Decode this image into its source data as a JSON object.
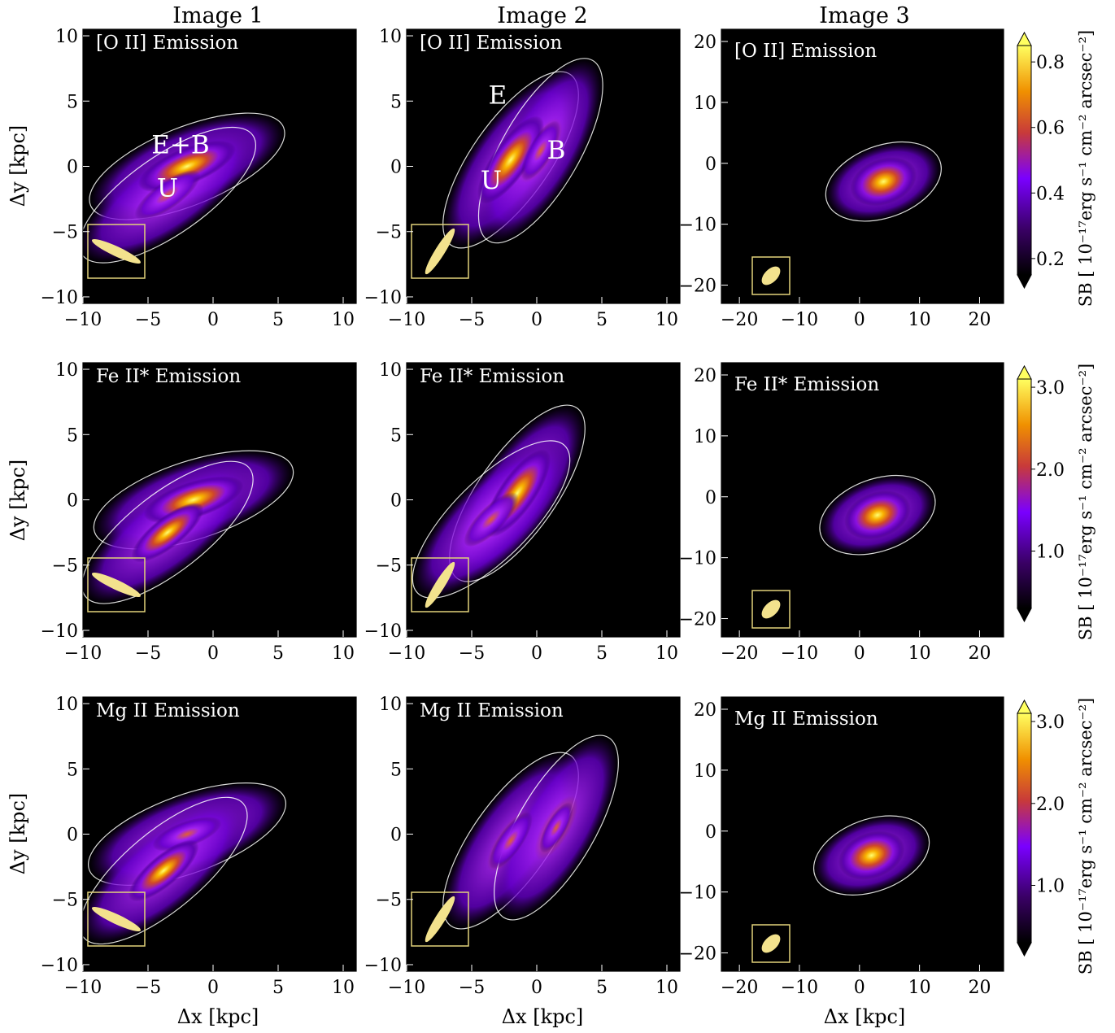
{
  "figure": {
    "column_titles": [
      "Image 1",
      "Image 2",
      "Image 3"
    ],
    "xlabel": "Δx [kpc]",
    "ylabel": "Δy [kpc]",
    "colorbar_label": "SB [ 10⁻¹⁷erg s⁻¹ cm⁻² arcsec⁻²]"
  },
  "colors": {
    "background": "#000000",
    "contour": "#ffffff",
    "beam_fill": "#f3e28d",
    "beam_box": "#e2d27a",
    "colormap": [
      "#000000",
      "#3a0066",
      "#7a00ff",
      "#c83a3a",
      "#f09000",
      "#ffff60"
    ]
  },
  "chart_data": [
    {
      "type": "heatmap",
      "row": 1,
      "col": 1,
      "label": "[O II] Emission",
      "xlim": [
        -10,
        11
      ],
      "ylim": [
        -10.5,
        10.5
      ],
      "xticks": [
        "−10",
        "−5",
        "0",
        "5",
        "10"
      ],
      "yticks": [
        "10",
        "5",
        "0",
        "−5",
        "−10"
      ],
      "annotations": [
        {
          "text": "E+B",
          "x": -2.5,
          "y": 1
        },
        {
          "text": "U",
          "x": -3.5,
          "y": -2.3
        }
      ],
      "emission_blobs": [
        {
          "x": -2,
          "y": 0,
          "level": 1.0,
          "angle": -22
        },
        {
          "x": -3.5,
          "y": -2.2,
          "level": 0.75,
          "angle": -35
        }
      ]
    },
    {
      "type": "heatmap",
      "row": 1,
      "col": 2,
      "label": "[O II] Emission",
      "xlim": [
        -10,
        11
      ],
      "ylim": [
        -10.5,
        10.5
      ],
      "xticks": [
        "−10",
        "−5",
        "0",
        "5",
        "10"
      ],
      "yticks": [
        "10",
        "5",
        "0",
        "−5",
        "−10"
      ],
      "annotations": [
        {
          "text": "E",
          "x": -3,
          "y": 4.8
        },
        {
          "text": "B",
          "x": 1.5,
          "y": 0.6
        },
        {
          "text": "U",
          "x": -3.5,
          "y": -1.7
        }
      ],
      "emission_blobs": [
        {
          "x": -2,
          "y": 0.5,
          "level": 1.0,
          "angle": -55
        },
        {
          "x": 0.3,
          "y": 1.2,
          "level": 0.65,
          "angle": -60
        }
      ]
    },
    {
      "type": "heatmap",
      "row": 1,
      "col": 3,
      "label": "[O II] Emission",
      "xlim": [
        -23,
        24
      ],
      "ylim": [
        -23,
        22
      ],
      "xticks": [
        "−20",
        "−10",
        "0",
        "10",
        "20"
      ],
      "yticks": [
        "20",
        "10",
        "0",
        "−10",
        "−20"
      ],
      "annotations": [],
      "emission_blobs": [
        {
          "x": 4,
          "y": -3,
          "level": 0.95,
          "angle": -20
        }
      ]
    },
    {
      "type": "heatmap",
      "row": 2,
      "col": 1,
      "label": "Fe II* Emission",
      "xlim": [
        -10,
        11
      ],
      "ylim": [
        -10.5,
        10.5
      ],
      "xticks": [
        "−10",
        "−5",
        "0",
        "5",
        "10"
      ],
      "yticks": [
        "10",
        "5",
        "0",
        "−5",
        "−10"
      ],
      "annotations": [],
      "emission_blobs": [
        {
          "x": -1.5,
          "y": 0,
          "level": 1.0,
          "angle": -18
        },
        {
          "x": -3.5,
          "y": -2.5,
          "level": 0.85,
          "angle": -38
        }
      ]
    },
    {
      "type": "heatmap",
      "row": 2,
      "col": 2,
      "label": "Fe II* Emission",
      "xlim": [
        -10,
        11
      ],
      "ylim": [
        -10.5,
        10.5
      ],
      "xticks": [
        "−10",
        "−5",
        "0",
        "5",
        "10"
      ],
      "yticks": [
        "10",
        "5",
        "0",
        "−5",
        "−10"
      ],
      "annotations": [],
      "emission_blobs": [
        {
          "x": -1.5,
          "y": 0.5,
          "level": 1.0,
          "angle": -55
        },
        {
          "x": -3.5,
          "y": -1.5,
          "level": 0.7,
          "angle": -45
        }
      ]
    },
    {
      "type": "heatmap",
      "row": 2,
      "col": 3,
      "label": "Fe II* Emission",
      "xlim": [
        -23,
        24
      ],
      "ylim": [
        -23,
        22
      ],
      "xticks": [
        "−20",
        "−10",
        "0",
        "10",
        "20"
      ],
      "yticks": [
        "20",
        "10",
        "0",
        "−10",
        "−20"
      ],
      "annotations": [],
      "emission_blobs": [
        {
          "x": 3,
          "y": -3,
          "level": 0.95,
          "angle": -20
        }
      ]
    },
    {
      "type": "heatmap",
      "row": 3,
      "col": 1,
      "label": "Mg II Emission",
      "xlim": [
        -10,
        11
      ],
      "ylim": [
        -10.5,
        10.5
      ],
      "xticks": [
        "−10",
        "−5",
        "0",
        "5",
        "10"
      ],
      "yticks": [
        "10",
        "5",
        "0",
        "−5",
        "−10"
      ],
      "annotations": [],
      "emission_blobs": [
        {
          "x": -2,
          "y": 0,
          "level": 0.7,
          "angle": -20
        },
        {
          "x": -3.8,
          "y": -2.8,
          "level": 0.85,
          "angle": -40
        }
      ]
    },
    {
      "type": "heatmap",
      "row": 3,
      "col": 2,
      "label": "Mg II Emission",
      "xlim": [
        -10,
        11
      ],
      "ylim": [
        -10.5,
        10.5
      ],
      "xticks": [
        "−10",
        "−5",
        "0",
        "5",
        "10"
      ],
      "yticks": [
        "10",
        "5",
        "0",
        "−5",
        "−10"
      ],
      "annotations": [],
      "emission_blobs": [
        {
          "x": -2,
          "y": -0.5,
          "level": 0.65,
          "angle": -55
        },
        {
          "x": 1.5,
          "y": 0.5,
          "level": 0.55,
          "angle": -60
        }
      ]
    },
    {
      "type": "heatmap",
      "row": 3,
      "col": 3,
      "label": "Mg II Emission",
      "xlim": [
        -23,
        24
      ],
      "ylim": [
        -23,
        22
      ],
      "xticks": [
        "−20",
        "−10",
        "0",
        "10",
        "20"
      ],
      "yticks": [
        "20",
        "10",
        "0",
        "−10",
        "−20"
      ],
      "annotations": [],
      "emission_blobs": [
        {
          "x": 2,
          "y": -4,
          "level": 0.95,
          "angle": -20
        }
      ]
    }
  ],
  "colorbars": [
    {
      "row": 1,
      "ticks": [
        "0.8",
        "0.6",
        "0.4",
        "0.2"
      ],
      "tick_values": [
        0.8,
        0.6,
        0.4,
        0.2
      ],
      "range": [
        0.15,
        0.85
      ]
    },
    {
      "row": 2,
      "ticks": [
        "3.0",
        "2.0",
        "1.0"
      ],
      "tick_values": [
        3.0,
        2.0,
        1.0
      ],
      "range": [
        0.3,
        3.1
      ]
    },
    {
      "row": 3,
      "ticks": [
        "3.0",
        "2.0",
        "1.0"
      ],
      "tick_values": [
        3.0,
        2.0,
        1.0
      ],
      "range": [
        0.3,
        3.1
      ]
    }
  ]
}
